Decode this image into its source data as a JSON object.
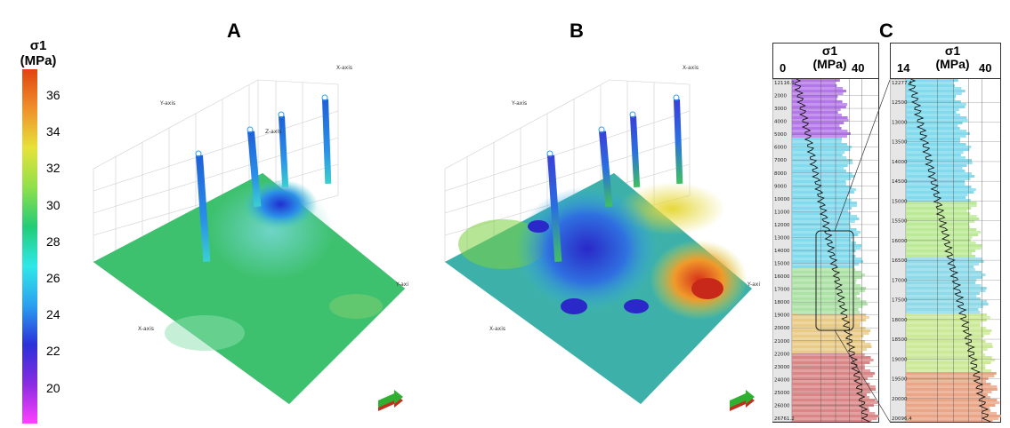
{
  "panels": {
    "a": {
      "letter": "A"
    },
    "b": {
      "letter": "B"
    },
    "c": {
      "letter": "C"
    }
  },
  "colorbar": {
    "title_line1": "σ1",
    "title_line2": "(MPa)",
    "ticks": [
      "36",
      "34",
      "32",
      "30",
      "28",
      "26",
      "24",
      "22",
      "20"
    ],
    "colors": [
      "#e0450f",
      "#f0902a",
      "#e6e23a",
      "#8fe04a",
      "#22cc77",
      "#2fe8e8",
      "#2aa0f0",
      "#2a30d8",
      "#8a2be2",
      "#ff40ff"
    ]
  },
  "axis_labels": {
    "x": "X-axis",
    "y": "Y-axis",
    "z": "Z-axis",
    "y_right": "Y-axi",
    "x_b": "X-axis",
    "y_b": "Y-axis"
  },
  "track_left": {
    "title_line1": "σ1",
    "title_line2": "(MPa)",
    "scale_min": "0",
    "scale_max": "40",
    "depths": [
      "12116.9",
      "2000",
      "3000",
      "4000",
      "5000",
      "6000",
      "7000",
      "8000",
      "9000",
      "10000",
      "11000",
      "12000",
      "13000",
      "14000",
      "15000",
      "16000",
      "17000",
      "18000",
      "19000",
      "20000",
      "21000",
      "22000",
      "23000",
      "24000",
      "25000",
      "26000",
      "26761.2"
    ]
  },
  "track_right": {
    "title_line1": "σ1",
    "title_line2": "(MPa)",
    "scale_min": "14",
    "scale_max": "40",
    "depths": [
      "12277.4",
      "12500",
      "13000",
      "13500",
      "14000",
      "14500",
      "15000",
      "15500",
      "16000",
      "16500",
      "17000",
      "17500",
      "18000",
      "18500",
      "19000",
      "19500",
      "20000",
      "20096.4"
    ]
  }
}
